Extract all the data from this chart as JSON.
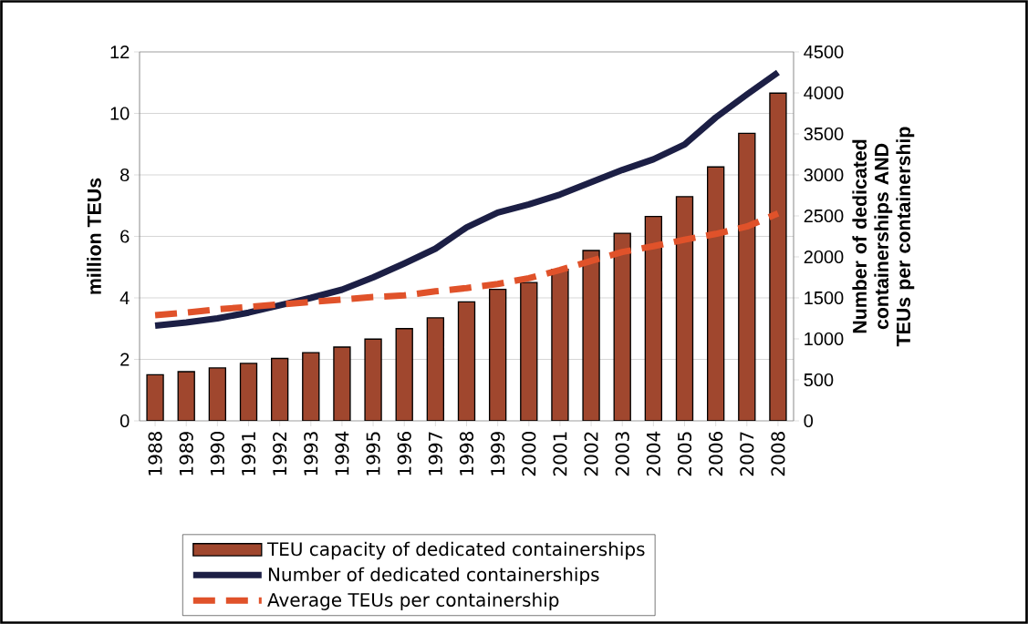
{
  "chart_data": {
    "type": "bar",
    "ylabel": "million TEUs",
    "y2label": "Number of dedicated containerships AND TEUs per containership",
    "categories": [
      "1988",
      "1989",
      "1990",
      "1991",
      "1992",
      "1993",
      "1994",
      "1995",
      "1996",
      "1997",
      "1998",
      "1999",
      "2000",
      "2001",
      "2002",
      "2003",
      "2004",
      "2005",
      "2006",
      "2007",
      "2008"
    ],
    "series": [
      {
        "name": "TEU capacity of dedicated containerships",
        "color": "#a0472e",
        "values": [
          1.5,
          1.6,
          1.72,
          1.87,
          2.03,
          2.22,
          2.4,
          2.66,
          3.0,
          3.35,
          3.87,
          4.28,
          4.5,
          4.93,
          5.54,
          6.1,
          6.65,
          7.29,
          8.26,
          9.35,
          10.66
        ]
      },
      {
        "name": "Number of dedicated containerships",
        "type": "line",
        "axis": "y2",
        "color": "#1c1f45",
        "line_style": "solid",
        "values": [
          1160,
          1200,
          1250,
          1320,
          1410,
          1500,
          1600,
          1750,
          1920,
          2100,
          2360,
          2540,
          2640,
          2760,
          2910,
          3060,
          3190,
          3370,
          3700,
          3980,
          4250
        ]
      },
      {
        "name": "Average TEUs per containership",
        "type": "line",
        "axis": "y2",
        "color": "#e0522a",
        "line_style": "dashed",
        "values": [
          1290,
          1320,
          1360,
          1390,
          1420,
          1450,
          1480,
          1510,
          1530,
          1580,
          1620,
          1670,
          1740,
          1840,
          1950,
          2060,
          2130,
          2210,
          2280,
          2370,
          2530
        ]
      }
    ],
    "ylim": [
      0,
      12
    ],
    "yticks": [
      0,
      2,
      4,
      6,
      8,
      10,
      12
    ],
    "y2lim": [
      0,
      4500
    ],
    "y2ticks": [
      0,
      500,
      1000,
      1500,
      2000,
      2500,
      3000,
      3500,
      4000,
      4500
    ],
    "grid": "y",
    "legend": "bottom"
  }
}
